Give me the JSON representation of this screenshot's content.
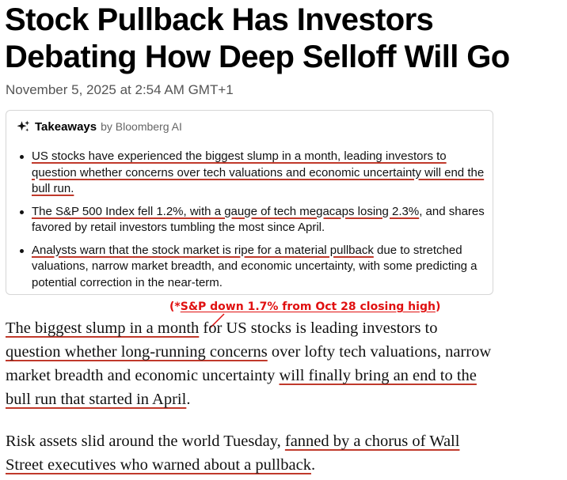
{
  "article": {
    "headline": "Stock Pullback Has Investors Debating How Deep Selloff Will Go",
    "date": "November 5, 2025 at 2:54 AM GMT+1"
  },
  "takeaways": {
    "icon": "sparkle-icon",
    "title": "Takeaways",
    "byline": "by Bloomberg AI",
    "items": [
      {
        "highlighted": "US stocks have experienced the biggest slump in a month, leading investors to question whether concerns over tech valuations and economic uncertainty will end the bull run.",
        "rest": ""
      },
      {
        "highlighted": "The S&P 500 Index fell 1.2%, with a gauge of tech megacaps losing 2.3%",
        "rest": ", and shares favored by retail investors tumbling the most since April."
      },
      {
        "highlighted": "Analysts warn that the stock market is ripe for a material pullback",
        "rest": " due to stretched valuations, narrow market breadth, and economic uncertainty, with some predicting a potential correction in the near-term."
      }
    ]
  },
  "annotation": {
    "open": "(*",
    "text": "S&P down 1.7% from Oct 28 closing high",
    "close": ")",
    "color": "#e01010"
  },
  "body": {
    "p1": {
      "seg1": "The biggest slump in a month",
      "seg2": " for US stocks is leading investors to ",
      "seg3": "question whether long-running concerns",
      "seg4": " over lofty tech valuations, narrow market breadth and economic uncertainty ",
      "seg5": "will finally bring an end to the bull run that started in April",
      "seg6": "."
    },
    "p2": {
      "seg1": "Risk assets slid around the world Tuesday, ",
      "seg2": "fanned by a chorus of Wall Street executives who warned about a pullback",
      "seg3": "."
    }
  },
  "colors": {
    "underline": "#c0392b",
    "annotation": "#e01010",
    "dateline": "#555555"
  }
}
